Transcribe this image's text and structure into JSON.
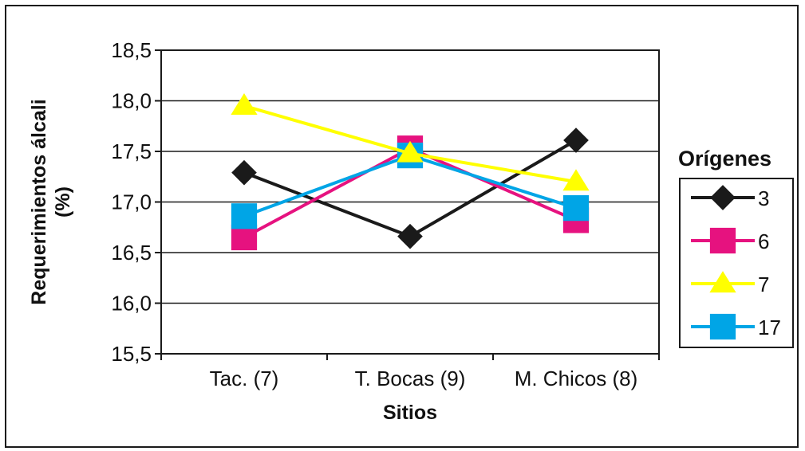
{
  "chart_data": {
    "type": "line",
    "title": "",
    "xlabel": "Sitios",
    "ylabel": [
      "Requerimientos álcali",
      "(%)"
    ],
    "categories": [
      "Tac. (7)",
      "T. Bocas (9)",
      "M. Chicos (8)"
    ],
    "ylim": [
      15.5,
      18.5
    ],
    "yticks": [
      "18,5",
      "18,0",
      "17,5",
      "17,0",
      "16,5",
      "16,0",
      "15,5"
    ],
    "ytick_values": [
      18.5,
      18.0,
      17.5,
      17.0,
      16.5,
      16.0,
      15.5
    ],
    "grid": "horizontal",
    "legend": {
      "title": "Orígenes",
      "placement": "right"
    },
    "series": [
      {
        "name": "3",
        "marker": "diamond",
        "color": "#1a1a1a",
        "values": [
          17.29,
          16.66,
          17.61
        ]
      },
      {
        "name": "6",
        "marker": "square",
        "color": "#e6127f",
        "values": [
          16.65,
          17.53,
          16.82
        ]
      },
      {
        "name": "7",
        "marker": "triangle",
        "color": "#ffff00",
        "values": [
          17.95,
          17.48,
          17.2
        ]
      },
      {
        "name": "17",
        "marker": "square",
        "color": "#00a5e6",
        "values": [
          16.86,
          17.46,
          16.94
        ]
      }
    ]
  }
}
